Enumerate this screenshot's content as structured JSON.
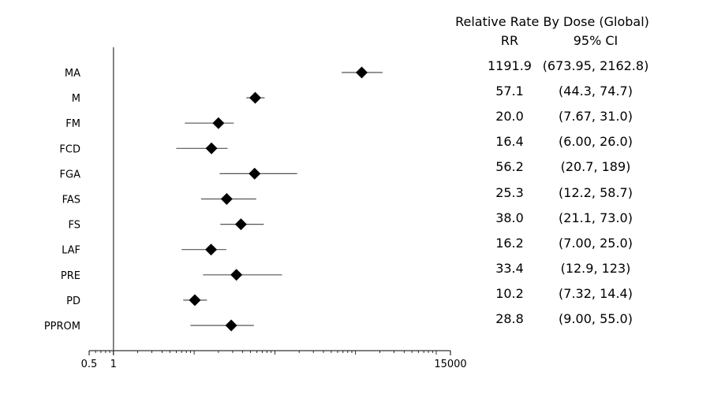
{
  "chart_data": {
    "type": "forest",
    "scale": "log",
    "xlim": [
      0.5,
      15000
    ],
    "xtick_labels": [
      "0.5",
      "1",
      "15000"
    ],
    "xticks": [
      0.5,
      1,
      15000
    ],
    "reference_line": 1,
    "grid": false,
    "categories": [
      "MA",
      "M",
      "FM",
      "FCD",
      "FGA",
      "FAS",
      "FS",
      "LAF",
      "PRE",
      "PD",
      "PPROM"
    ],
    "rr": [
      1191.9,
      57.1,
      20.0,
      16.4,
      56.2,
      25.3,
      38.0,
      16.2,
      33.4,
      10.2,
      28.8
    ],
    "ci_low": [
      673.95,
      44.3,
      7.67,
      6.0,
      20.7,
      12.2,
      21.1,
      7.0,
      12.9,
      7.32,
      9.0
    ],
    "ci_high": [
      2162.8,
      74.7,
      31.0,
      26.0,
      189,
      58.7,
      73.0,
      25.0,
      123,
      14.4,
      55.0
    ],
    "marker": "diamond",
    "marker_color": "#000000",
    "ci_color": "#555555"
  },
  "table": {
    "title": "Relative Rate By Dose (Global)",
    "col_rr": "RR",
    "col_ci": "95% CI",
    "rows": [
      {
        "rr": "1191.9",
        "ci": "(673.95, 2162.8)"
      },
      {
        "rr": "57.1",
        "ci": "(44.3, 74.7)"
      },
      {
        "rr": "20.0",
        "ci": "(7.67, 31.0)"
      },
      {
        "rr": "16.4",
        "ci": "(6.00, 26.0)"
      },
      {
        "rr": "56.2",
        "ci": "(20.7, 189)"
      },
      {
        "rr": "25.3",
        "ci": "(12.2, 58.7)"
      },
      {
        "rr": "38.0",
        "ci": "(21.1, 73.0)"
      },
      {
        "rr": "16.2",
        "ci": "(7.00, 25.0)"
      },
      {
        "rr": "33.4",
        "ci": "(12.9, 123)"
      },
      {
        "rr": "10.2",
        "ci": "(7.32, 14.4)"
      },
      {
        "rr": "28.8",
        "ci": "(9.00, 55.0)"
      }
    ]
  }
}
